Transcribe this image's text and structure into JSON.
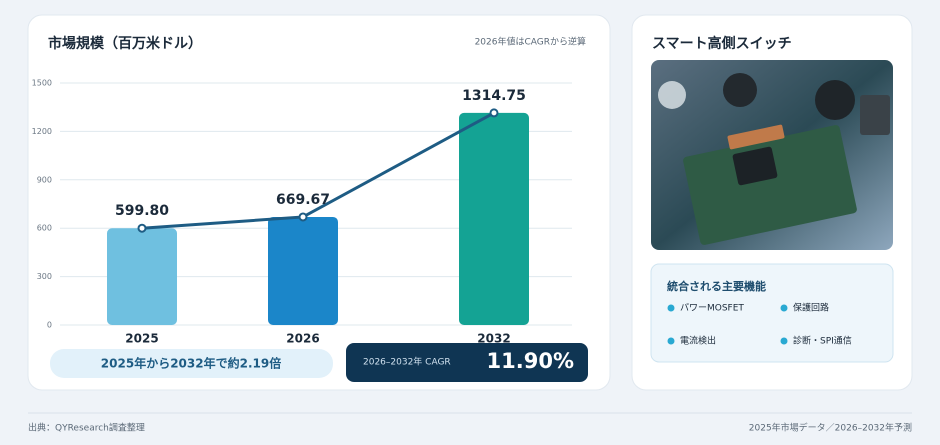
{
  "chart_data": {
    "type": "bar",
    "title": "市場規模（百万米ドル）",
    "note": "2026年値はCAGRから逆算",
    "categories": [
      "2025",
      "2026",
      "2032"
    ],
    "values": [
      599.8,
      669.67,
      1314.75
    ],
    "value_labels": [
      "599.80",
      "669.67",
      "1314.75"
    ],
    "colors": [
      "#6fc0e0",
      "#1b86c9",
      "#14a394"
    ],
    "line_color": "#1e5c84",
    "ylim": [
      0,
      1500
    ],
    "yticks": [
      0,
      300,
      600,
      900,
      1200,
      1500
    ],
    "grid": true
  },
  "summary": "2025年から2032年で約2.19倍",
  "cagr": {
    "label": "2026–2032年 CAGR",
    "value": "11.90%"
  },
  "product": {
    "title": "スマート高側スイッチ",
    "features_title": "統合される主要機能",
    "features": [
      "パワーMOSFET",
      "保護回路",
      "電流検出",
      "診断・SPI通信"
    ]
  },
  "footer": {
    "source": "出典：QYResearch調査整理",
    "scope": "2025年市場データ／2026–2032年予測"
  }
}
